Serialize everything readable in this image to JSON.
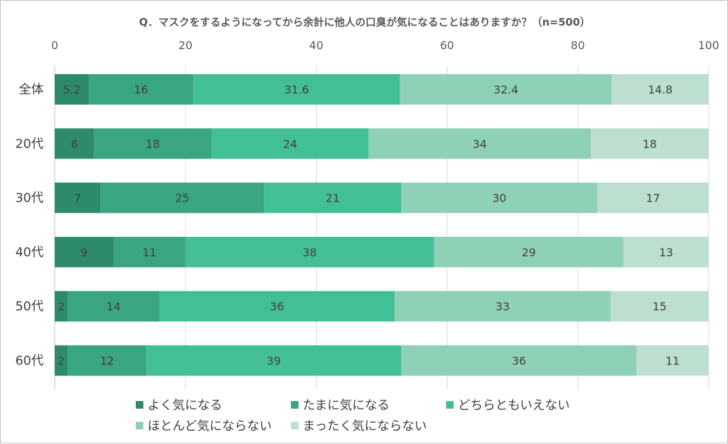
{
  "chart_data": {
    "type": "bar",
    "orientation": "horizontal",
    "stacked": true,
    "title": "Q．マスクをするようになってから余計に他人の口臭が気になることはありますか？（n=500）",
    "xlabel": "",
    "ylabel": "",
    "xlim": [
      0,
      100
    ],
    "x_ticks": [
      "0",
      "20",
      "40",
      "60",
      "80",
      "100"
    ],
    "grid": true,
    "legend_position": "bottom",
    "categories": [
      "全体",
      "20代",
      "30代",
      "40代",
      "50代",
      "60代"
    ],
    "series": [
      {
        "name": "よく気になる",
        "color": "#2e8b6a",
        "values": [
          5.2,
          6,
          7,
          9,
          2,
          2
        ]
      },
      {
        "name": "たまに気になる",
        "color": "#3aa581",
        "values": [
          16,
          18,
          25,
          11,
          14,
          12
        ]
      },
      {
        "name": "どちらともいえない",
        "color": "#43bf97",
        "values": [
          31.6,
          24,
          21,
          38,
          36,
          39
        ]
      },
      {
        "name": "ほとんど気にならない",
        "color": "#8fd1b6",
        "values": [
          32.4,
          34,
          30,
          29,
          33,
          36
        ]
      },
      {
        "name": "まったく気にならない",
        "color": "#bcdfcf",
        "values": [
          14.8,
          18,
          17,
          13,
          15,
          11
        ]
      }
    ]
  }
}
